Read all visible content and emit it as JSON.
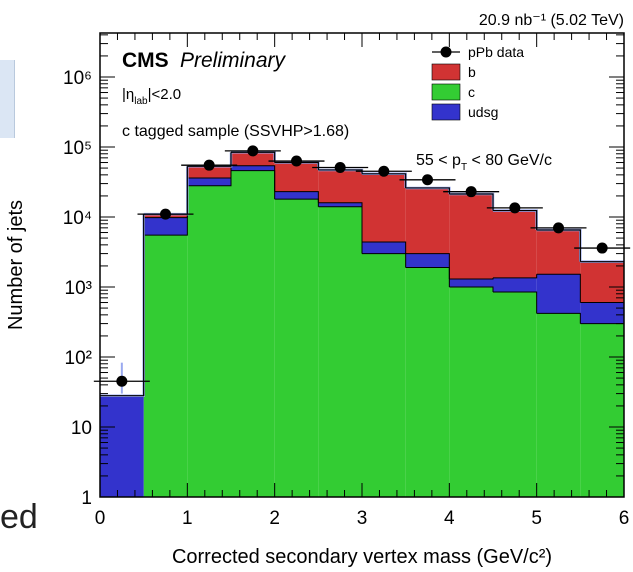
{
  "chart_data": {
    "type": "bar",
    "stacked": true,
    "log_scale_y": true,
    "xlabel": "Corrected secondary vertex mass (GeV/c²)",
    "ylabel": "Number of jets",
    "xlim": [
      0,
      6
    ],
    "ylim": [
      1,
      10000000
    ],
    "x_ticks": [
      "0",
      "1",
      "2",
      "3",
      "4",
      "5",
      "6"
    ],
    "y_ticks": [
      "1",
      "10",
      "10²",
      "10³",
      "10⁴",
      "10⁵",
      "10⁶"
    ],
    "bin_edges": [
      0,
      0.5,
      1.0,
      1.5,
      2.0,
      2.5,
      3.0,
      3.5,
      4.0,
      4.5,
      5.0,
      5.5,
      6.0
    ],
    "series": [
      {
        "name": "c",
        "color": "#33cc33",
        "values": [
          0,
          5500,
          28000,
          46000,
          18000,
          14000,
          3000,
          1900,
          1000,
          850,
          420,
          300
        ]
      },
      {
        "name": "udsg",
        "color": "#3333cc",
        "values": [
          28,
          4300,
          8000,
          8000,
          5000,
          2000,
          1400,
          1100,
          300,
          500,
          1100,
          300
        ]
      },
      {
        "name": "b",
        "color": "#d13333",
        "values": [
          0,
          1200,
          17000,
          30000,
          37000,
          31000,
          37000,
          23000,
          20000,
          11000,
          5000,
          1700
        ]
      }
    ],
    "data_points": {
      "name": "pPb data",
      "x": [
        0.25,
        0.75,
        1.25,
        1.75,
        2.25,
        2.75,
        3.25,
        3.75,
        4.25,
        4.75,
        5.25,
        5.75
      ],
      "y": [
        45,
        11000,
        55000,
        88000,
        63000,
        51000,
        45000,
        34000,
        23000,
        13500,
        7000,
        3600
      ],
      "err": [
        [
          15,
          38
        ],
        null,
        null,
        null,
        null,
        null,
        null,
        null,
        null,
        null,
        null,
        null
      ]
    },
    "legend_placement": "top-right",
    "grid": false
  },
  "header": {
    "luminosity": "20.9 nb⁻¹ (5.02 TeV)",
    "experiment": "CMS",
    "status": "Preliminary"
  },
  "annotations": {
    "eta_cut": "|η",
    "eta_sub": "lab",
    "eta_rest": "|<2.0",
    "sample": "c tagged sample (SSVHP>1.68)",
    "pt_range_a": "55 < p",
    "pt_sub": "T",
    "pt_range_b": " < 80 GeV/c"
  },
  "fragments": {
    "bottom_left_text": "ed"
  }
}
